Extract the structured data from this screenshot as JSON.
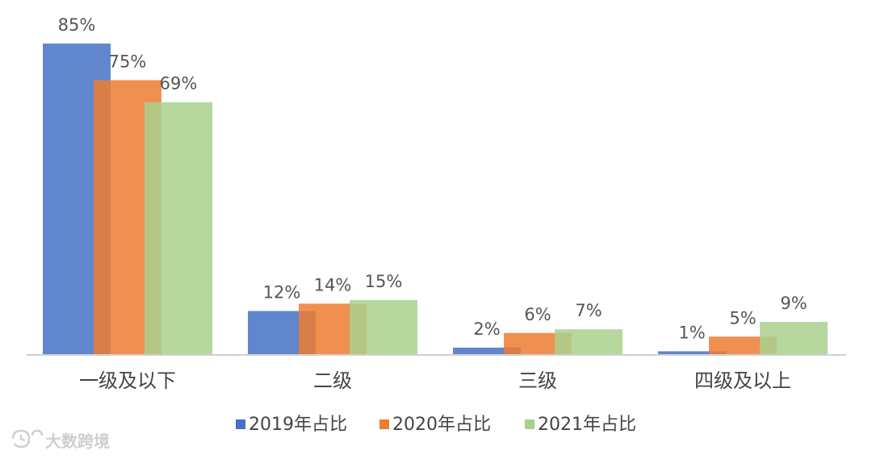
{
  "chart_data": {
    "type": "bar",
    "categories": [
      "一级及以下",
      "二级",
      "三级",
      "四级及以上"
    ],
    "series": [
      {
        "name": "2019年占比",
        "values": [
          85,
          12,
          2,
          1
        ],
        "labels": [
          "85%",
          "12%",
          "2%",
          "1%"
        ],
        "color": "#4472c4"
      },
      {
        "name": "2020年占比",
        "values": [
          75,
          14,
          6,
          5
        ],
        "labels": [
          "75%",
          "14%",
          "6%",
          "5%"
        ],
        "color": "#ed7d31"
      },
      {
        "name": "2021年占比",
        "values": [
          69,
          15,
          7,
          9
        ],
        "labels": [
          "69%",
          "15%",
          "7%",
          "9%"
        ],
        "color": "#a9d18e"
      }
    ],
    "ylim": [
      0,
      85
    ],
    "grid": false,
    "legend_position": "bottom"
  },
  "watermark": {
    "text": "大数跨境"
  }
}
